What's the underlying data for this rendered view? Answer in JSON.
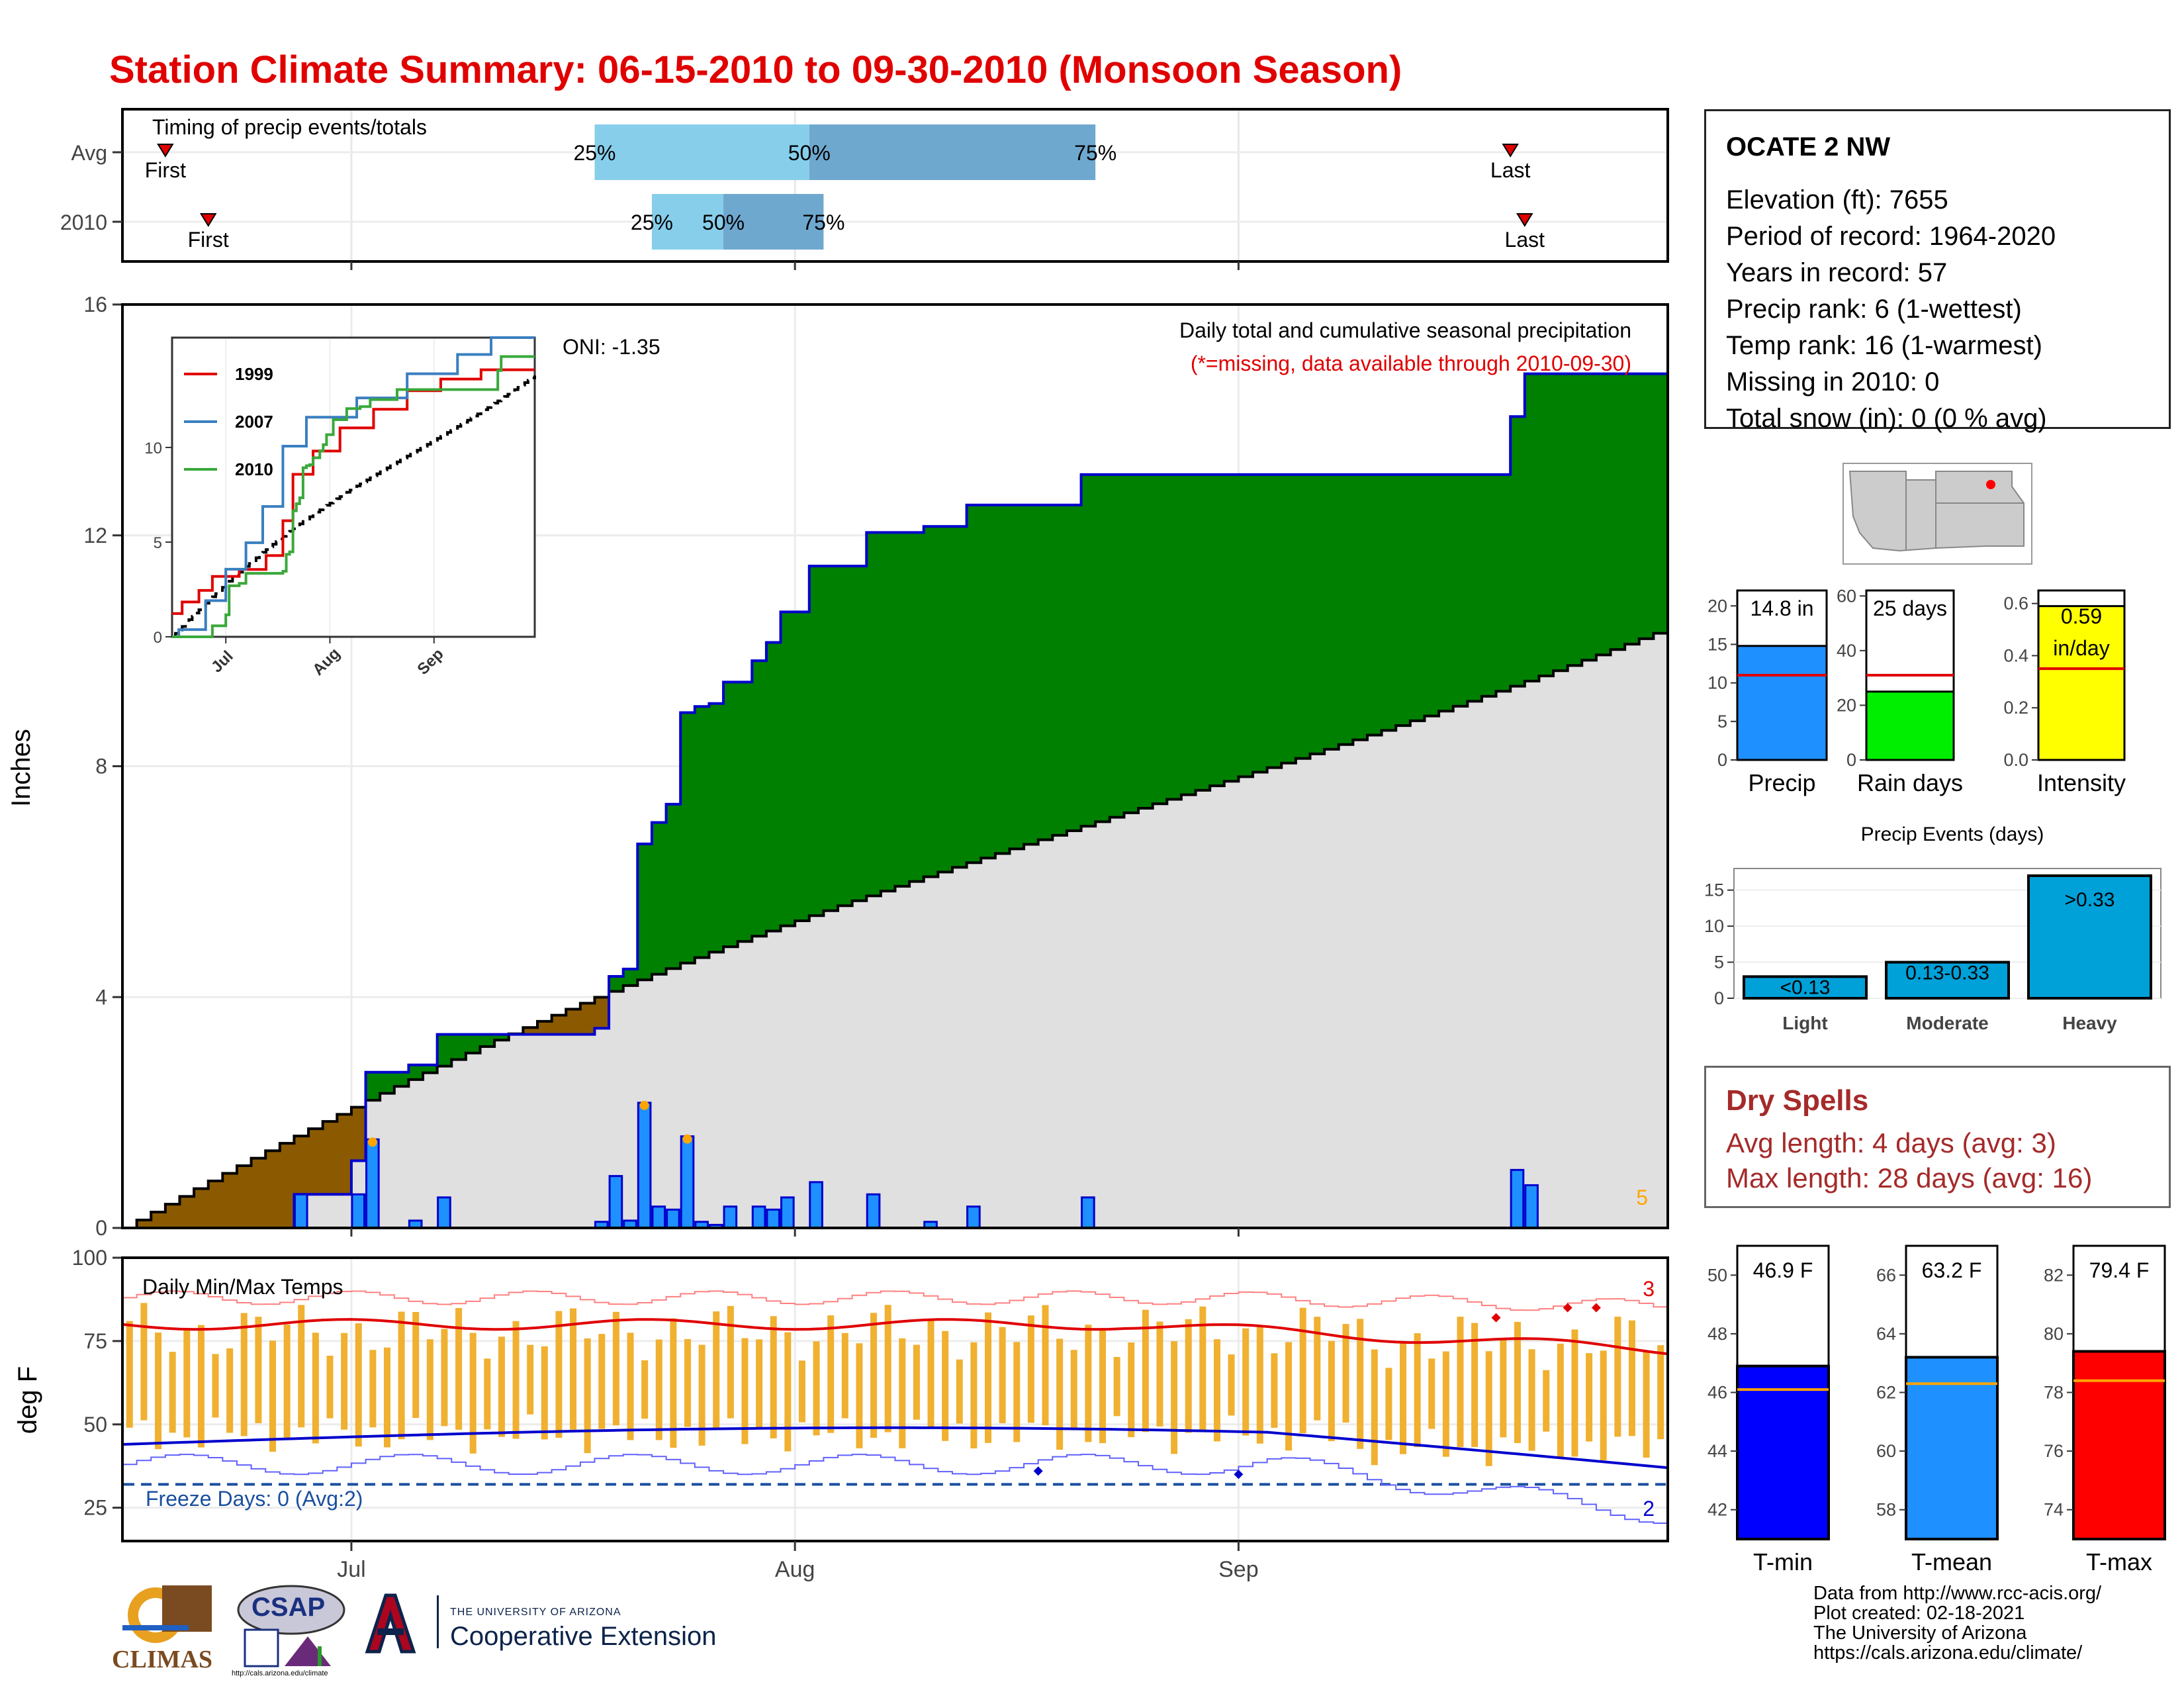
{
  "title": "Station Climate Summary: 06-15-2010 to 09-30-2010 (Monsoon Season)",
  "timing": {
    "label": "Timing of precip events/totals",
    "rows": [
      {
        "name": "Avg",
        "first_date": "2010-06-18",
        "p25_date": "2010-07-18",
        "p50_date": "2010-08-02",
        "p75_date": "2010-08-22",
        "last_date": "2010-09-20"
      },
      {
        "name": "2010",
        "first_date": "2010-06-21",
        "p25_date": "2010-07-22",
        "p50_date": "2010-07-27",
        "p75_date": "2010-08-03",
        "last_date": "2010-09-21"
      }
    ],
    "first_label": "First",
    "last_label": "Last",
    "p25_label": "25%",
    "p50_label": "50%",
    "p75_label": "75%",
    "colors": {
      "lower": "#87ceeb",
      "upper": "#6fa8cf",
      "marker": "#e00000"
    }
  },
  "station": {
    "name": "OCATE 2 NW",
    "elevation": "Elevation (ft): 7655",
    "period": "Period of record: 1964-2020",
    "years": "Years in record: 57",
    "precip_rank": "Precip rank: 6 (1-wettest)",
    "temp_rank": "Temp rank: 16 (1-warmest)",
    "missing": "Missing in 2010: 0",
    "snow": "Total snow (in): 0 (0 % avg)"
  },
  "precip": {
    "ylabel": "Inches",
    "note1": "Daily total and cumulative seasonal precipitation",
    "note2": "(*=missing, data available through 2010-09-30)",
    "oni": "ONI: -1.35",
    "corner_count": "5",
    "ylim": [
      0,
      16
    ],
    "yticks": [
      "0",
      "4",
      "8",
      "12",
      "16"
    ],
    "colors": {
      "above": "#008000",
      "below": "#8b5a00",
      "normal": "#e0e0e0",
      "bars": "#1e90ff",
      "edge": "#0000cd",
      "extreme": "#ffa500"
    }
  },
  "inset": {
    "series": [
      {
        "name": "1999",
        "color": "#e00000"
      },
      {
        "name": "2007",
        "color": "#3a7fc0"
      },
      {
        "name": "2010",
        "color": "#3aa83a"
      }
    ],
    "yticks": [
      "0",
      "5",
      "10"
    ],
    "xticks": [
      "Jul",
      "Aug",
      "Sep"
    ]
  },
  "temp": {
    "ylabel": "deg F",
    "label": "Daily Min/Max Temps",
    "freeze": "Freeze Days: 0 (Avg:2)",
    "top_count": "3",
    "bottom_count": "2",
    "ylim": [
      15,
      100
    ],
    "yticks": [
      "25",
      "50",
      "75",
      "100"
    ],
    "freeze_line": 32,
    "colors": {
      "bars": "#f0b030",
      "max": "#e00000",
      "min": "#0000cd"
    }
  },
  "xaxis": {
    "ticks": [
      "Jul",
      "Aug",
      "Sep"
    ]
  },
  "summary_bars": [
    {
      "name": "precip",
      "label": "Precip",
      "value_label": "14.8 in",
      "value": 14.8,
      "avg": 11,
      "ylim": [
        0,
        22
      ],
      "yticks": [
        "0",
        "5",
        "10",
        "15",
        "20"
      ],
      "color": "#1e90ff"
    },
    {
      "name": "rain-days",
      "label": "Rain days",
      "value_label": "25 days",
      "value": 25,
      "avg": 31,
      "ylim": [
        0,
        62
      ],
      "yticks": [
        "0",
        "20",
        "40",
        "60"
      ],
      "color": "#00ee00"
    },
    {
      "name": "intensity",
      "label": "Intensity",
      "value_label": "0.59 in/day",
      "value": 0.59,
      "avg": 0.35,
      "ylim": [
        0,
        0.65
      ],
      "yticks": [
        "0.0",
        "0.2",
        "0.4",
        "0.6"
      ],
      "color": "#ffff00"
    }
  ],
  "events": {
    "title": "Precip Events (days)",
    "categories": [
      "Light",
      "Moderate",
      "Heavy"
    ],
    "values": [
      3,
      5,
      17
    ],
    "labels": [
      "<0.13",
      "0.13-0.33",
      ">0.33"
    ],
    "ylim": [
      0,
      18
    ],
    "yticks": [
      "0",
      "5",
      "10",
      "15"
    ],
    "color": "#00a0d8"
  },
  "dry": {
    "title": "Dry Spells",
    "avg": "Avg length: 4 days (avg: 3)",
    "max": "Max length: 28 days (avg: 16)"
  },
  "temp_bars": [
    {
      "name": "tmin",
      "label": "T-min",
      "value_label": "46.9 F",
      "value": 46.9,
      "avg": 46.1,
      "ylim": [
        41,
        51
      ],
      "yticks": [
        "42",
        "44",
        "46",
        "48",
        "50"
      ],
      "color": "#0000ff"
    },
    {
      "name": "tmean",
      "label": "T-mean",
      "value_label": "63.2 F",
      "value": 63.2,
      "avg": 62.3,
      "ylim": [
        57,
        67
      ],
      "yticks": [
        "58",
        "60",
        "62",
        "64",
        "66"
      ],
      "color": "#1e90ff"
    },
    {
      "name": "tmax",
      "label": "T-max",
      "value_label": "79.4 F",
      "value": 79.4,
      "avg": 78.4,
      "ylim": [
        73,
        83
      ],
      "yticks": [
        "74",
        "76",
        "78",
        "80",
        "82"
      ],
      "color": "#ff0000"
    }
  ],
  "credits": [
    "Data from http://www.rcc-acis.org/",
    "Plot created: 02-18-2021",
    "The University of Arizona",
    "https://cals.arizona.edu/climate/"
  ],
  "logos": {
    "climas": "CLIMAS",
    "csap": "CSAP",
    "csap_url": "http://cals.arizona.edu/climate",
    "ua_line1": "THE UNIVERSITY OF ARIZONA",
    "ua_line2": "Cooperative Extension"
  }
}
